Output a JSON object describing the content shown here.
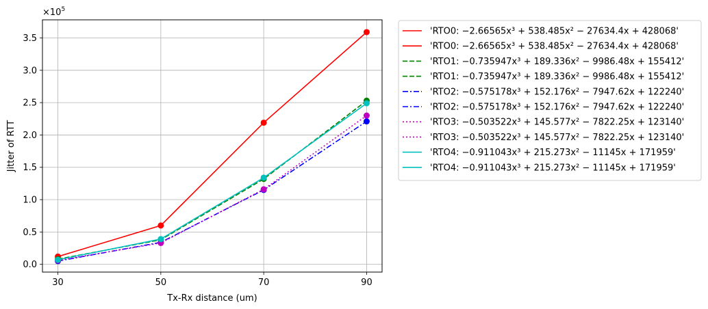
{
  "chart_data": {
    "type": "line",
    "xlabel": "Tx-Rx distance (um)",
    "ylabel": "Jitter of RTT",
    "y_offset_label": "×10",
    "y_offset_exponent": "5",
    "x_ticks": [
      30,
      50,
      70,
      90
    ],
    "x_tick_labels": [
      "30",
      "50",
      "70",
      "90"
    ],
    "xlim": [
      27,
      93
    ],
    "y_ticks": [
      0.0,
      0.5,
      1.0,
      1.5,
      2.0,
      2.5,
      3.0,
      3.5
    ],
    "y_tick_labels": [
      "0.0",
      "0.5",
      "1.0",
      "1.5",
      "2.0",
      "2.5",
      "3.0",
      "3.5"
    ],
    "ylim": [
      -0.12,
      3.78
    ],
    "y_unit_scale": 100000,
    "grid": true,
    "legend_position": "outside-right",
    "x": [
      30,
      50,
      70,
      90
    ],
    "series": [
      {
        "values": [
          0.12,
          0.6,
          2.19,
          3.59
        ],
        "color": "#ff0000",
        "style": "solid",
        "marker": true
      },
      {
        "values": [
          0.08,
          0.38,
          1.32,
          2.53
        ],
        "color": "#008000",
        "style": "dashed",
        "marker": true
      },
      {
        "values": [
          0.05,
          0.34,
          1.15,
          2.21
        ],
        "color": "#0000ff",
        "style": "dashdot",
        "marker": true
      },
      {
        "values": [
          0.06,
          0.33,
          1.16,
          2.3
        ],
        "color": "#bf00bf",
        "style": "dotted",
        "marker": true
      },
      {
        "values": [
          0.07,
          0.39,
          1.34,
          2.49
        ],
        "color": "#00bfbf",
        "style": "solid",
        "marker": true
      }
    ],
    "legend": [
      {
        "text": "'RTO0: −2.66565x³ + 538.485x² − 27634.4x + 428068'",
        "color": "#ff0000",
        "style": "solid"
      },
      {
        "text": "'RTO0: −2.66565x³ + 538.485x² − 27634.4x + 428068'",
        "color": "#ff0000",
        "style": "solid"
      },
      {
        "text": "'RTO1: −0.735947x³ + 189.336x² − 9986.48x + 155412'",
        "color": "#008000",
        "style": "dashed"
      },
      {
        "text": "'RTO1: −0.735947x³ + 189.336x² − 9986.48x + 155412'",
        "color": "#008000",
        "style": "dashed"
      },
      {
        "text": "'RTO2: −0.575178x³ + 152.176x² − 7947.62x + 122240'",
        "color": "#0000ff",
        "style": "dashdot"
      },
      {
        "text": "'RTO2: −0.575178x³ + 152.176x² − 7947.62x + 122240'",
        "color": "#0000ff",
        "style": "dashdot"
      },
      {
        "text": "'RTO3: −0.503522x³ + 145.577x² − 7822.25x + 123140'",
        "color": "#bf00bf",
        "style": "dotted"
      },
      {
        "text": "'RTO3: −0.503522x³ + 145.577x² − 7822.25x + 123140'",
        "color": "#bf00bf",
        "style": "dotted"
      },
      {
        "text": "'RTO4: −0.911043x³ + 215.273x² − 11145x + 171959'",
        "color": "#00bfbf",
        "style": "solid"
      },
      {
        "text": "'RTO4: −0.911043x³ + 215.273x² − 11145x + 171959'",
        "color": "#00bfbf",
        "style": "solid"
      }
    ]
  }
}
